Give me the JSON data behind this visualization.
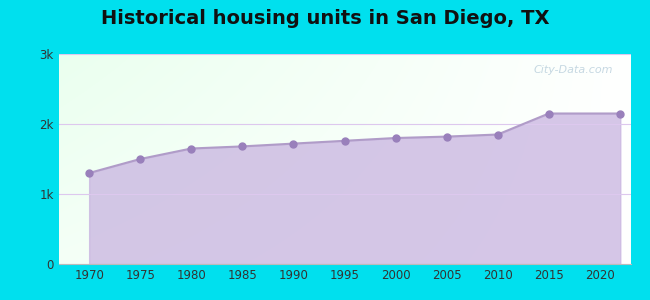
{
  "title": "Historical housing units in San Diego, TX",
  "title_fontsize": 14,
  "title_fontweight": "bold",
  "years": [
    1970,
    1975,
    1980,
    1985,
    1990,
    1995,
    2000,
    2005,
    2010,
    2015,
    2022
  ],
  "values": [
    1300,
    1500,
    1650,
    1680,
    1720,
    1760,
    1800,
    1820,
    1850,
    2150,
    2150
  ],
  "line_color": "#b09cc8",
  "fill_color": "#c8b4e0",
  "fill_alpha": 0.75,
  "marker_color": "#9980bb",
  "marker_size": 5,
  "background_outer": "#00e0ee",
  "yticks": [
    0,
    1000,
    2000,
    3000
  ],
  "ytick_labels": [
    "0",
    "1k",
    "2k",
    "3k"
  ],
  "ylim": [
    0,
    3000
  ],
  "xticks": [
    1970,
    1975,
    1980,
    1985,
    1990,
    1995,
    2000,
    2005,
    2010,
    2015,
    2020
  ],
  "grid_color": "#ddc8ee",
  "watermark_text": "City-Data.com",
  "watermark_color": "#99b8cc",
  "watermark_alpha": 0.55,
  "xlim_left": 1967,
  "xlim_right": 2023
}
